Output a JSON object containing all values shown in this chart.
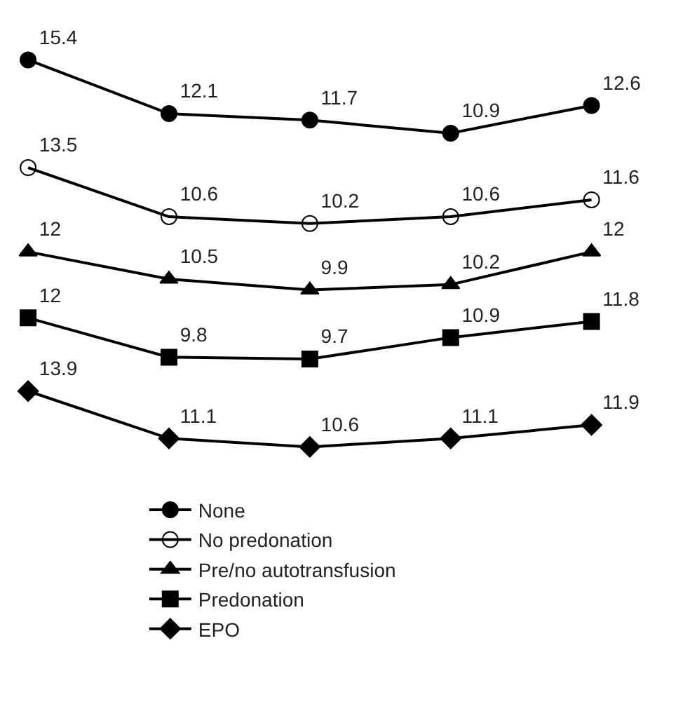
{
  "chart_data": [
    {
      "type": "line",
      "categories": [
        null,
        null,
        null,
        null,
        null
      ],
      "series": [
        {
          "name": "None",
          "color": "#000000",
          "marker": "circle",
          "values": [
            15.4,
            12.1,
            11.7,
            10.9,
            12.6
          ]
        }
      ],
      "data_labels": true,
      "tick_labels": false,
      "legend": "bottom",
      "line_style": "solid"
    },
    {
      "type": "line",
      "categories": [
        null,
        null,
        null,
        null,
        null
      ],
      "series": [
        {
          "name": "No predonation",
          "color": "#000000",
          "marker": "circle-open",
          "values": [
            13.5,
            10.6,
            10.2,
            10.6,
            11.6
          ]
        }
      ],
      "data_labels": true,
      "tick_labels": false,
      "legend": "bottom",
      "line_style": "solid"
    },
    {
      "type": "line",
      "categories": [
        null,
        null,
        null,
        null,
        null
      ],
      "series": [
        {
          "name": "Pre/no autotransfusion",
          "color": "#000000",
          "marker": "triangle",
          "values": [
            12,
            10.5,
            9.9,
            10.2,
            12
          ]
        }
      ],
      "data_labels": true,
      "tick_labels": false,
      "legend": "bottom",
      "line_style": "solid"
    },
    {
      "type": "line",
      "categories": [
        null,
        null,
        null,
        null,
        null
      ],
      "series": [
        {
          "name": "Predonation",
          "color": "#000000",
          "marker": "square",
          "values": [
            12,
            9.8,
            9.7,
            10.9,
            11.8
          ]
        }
      ],
      "data_labels": true,
      "tick_labels": false,
      "legend": "bottom",
      "line_style": "solid"
    },
    {
      "type": "line",
      "categories": [
        null,
        null,
        null,
        null,
        null
      ],
      "series": [
        {
          "name": "EPO",
          "color": "#000000",
          "marker": "diamond",
          "values": [
            13.9,
            11.1,
            10.6,
            11.1,
            11.9
          ]
        }
      ],
      "data_labels": true,
      "tick_labels": false,
      "legend": "bottom",
      "line_style": "solid"
    }
  ]
}
